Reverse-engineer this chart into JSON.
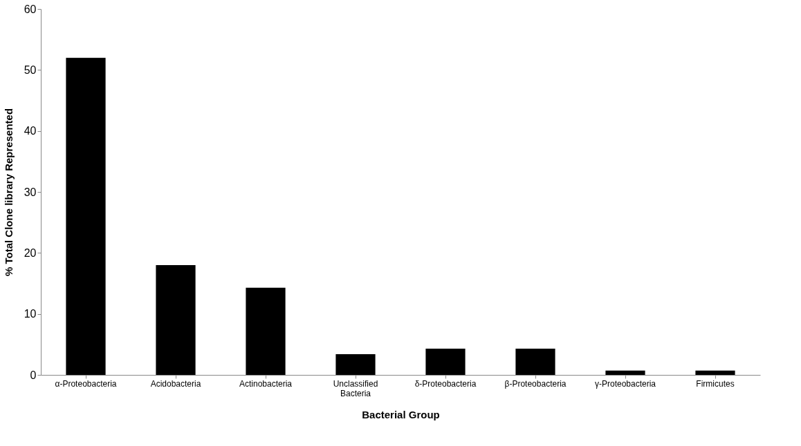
{
  "chart_data": {
    "type": "bar",
    "xlabel": "Bacterial Group",
    "ylabel": "% Total Clone library Represented",
    "categories": [
      "α-Proteobacteria",
      "Acidobacteria",
      "Actinobacteria",
      "Unclassified Bacteria",
      "δ-Proteobacteria",
      "β-Proteobacteria",
      "γ-Proteobacteria",
      "Firmicutes"
    ],
    "values": [
      52,
      18,
      14.3,
      3.4,
      4.3,
      4.3,
      0.7,
      0.7
    ],
    "color": "#000000",
    "ylim": [
      0,
      60
    ],
    "yticks": [
      0,
      10,
      20,
      30,
      40,
      50,
      60
    ],
    "grid": false
  }
}
